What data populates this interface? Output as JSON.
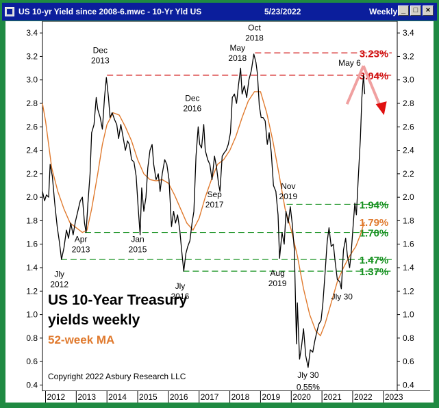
{
  "window": {
    "title": "US 10-yr Yield since 2008-6.mwc - 10-Yr Yld US",
    "date": "5/23/2022",
    "period": "Weekly",
    "minimize_glyph": "_",
    "maximize_glyph": "□",
    "close_glyph": "×"
  },
  "colors": {
    "titlebar": "#0b1e9c",
    "frame": "#1f8a42",
    "price_line": "#000000",
    "ma_line": "#e07a2e",
    "resistance": "#d01010",
    "support": "#14901e",
    "ma_label": "#e07a2e"
  },
  "chart_data": {
    "type": "line",
    "title": "US 10-Year Treasury yields weekly",
    "title_line1": "US 10-Year Treasury",
    "title_line2": "yields weekly",
    "subtitle": "52-week MA",
    "copyright": "Copyright 2022 Asbury Research LLC",
    "x_ticks": [
      "2012",
      "2013",
      "2014",
      "2015",
      "2016",
      "2017",
      "2018",
      "2019",
      "2020",
      "2021",
      "2022",
      "2023"
    ],
    "y_ticks": [
      "0.4",
      "0.6",
      "0.8",
      "1.0",
      "1.2",
      "1.4",
      "1.6",
      "1.8",
      "2.0",
      "2.2",
      "2.4",
      "2.6",
      "2.8",
      "3.0",
      "3.2",
      "3.4"
    ],
    "ylim": [
      0.35,
      3.5
    ],
    "xlim": [
      2011.9,
      2023.45
    ],
    "grid": false,
    "series": [
      {
        "name": "10-Yr Yld US",
        "style": "black",
        "points": [
          [
            2011.9,
            2.05
          ],
          [
            2011.97,
            1.97
          ],
          [
            2012.03,
            2.02
          ],
          [
            2012.1,
            2.0
          ],
          [
            2012.15,
            2.28
          ],
          [
            2012.22,
            2.18
          ],
          [
            2012.3,
            1.95
          ],
          [
            2012.38,
            1.75
          ],
          [
            2012.45,
            1.62
          ],
          [
            2012.52,
            1.47
          ],
          [
            2012.6,
            1.57
          ],
          [
            2012.68,
            1.72
          ],
          [
            2012.75,
            1.65
          ],
          [
            2012.82,
            1.78
          ],
          [
            2012.9,
            1.68
          ],
          [
            2012.97,
            1.79
          ],
          [
            2013.05,
            1.88
          ],
          [
            2013.13,
            1.97
          ],
          [
            2013.2,
            2.0
          ],
          [
            2013.27,
            1.78
          ],
          [
            2013.32,
            1.7
          ],
          [
            2013.38,
            1.95
          ],
          [
            2013.45,
            2.2
          ],
          [
            2013.5,
            2.55
          ],
          [
            2013.58,
            2.62
          ],
          [
            2013.65,
            2.85
          ],
          [
            2013.7,
            2.75
          ],
          [
            2013.78,
            2.68
          ],
          [
            2013.85,
            2.58
          ],
          [
            2013.92,
            2.85
          ],
          [
            2013.98,
            3.02
          ],
          [
            2014.05,
            2.85
          ],
          [
            2014.1,
            2.68
          ],
          [
            2014.17,
            2.72
          ],
          [
            2014.25,
            2.66
          ],
          [
            2014.32,
            2.62
          ],
          [
            2014.38,
            2.5
          ],
          [
            2014.45,
            2.62
          ],
          [
            2014.52,
            2.52
          ],
          [
            2014.6,
            2.4
          ],
          [
            2014.67,
            2.48
          ],
          [
            2014.73,
            2.45
          ],
          [
            2014.8,
            2.32
          ],
          [
            2014.88,
            2.3
          ],
          [
            2014.95,
            2.18
          ],
          [
            2015.02,
            1.9
          ],
          [
            2015.08,
            1.68
          ],
          [
            2015.13,
            2.08
          ],
          [
            2015.2,
            1.88
          ],
          [
            2015.27,
            2.0
          ],
          [
            2015.33,
            2.25
          ],
          [
            2015.4,
            2.4
          ],
          [
            2015.47,
            2.45
          ],
          [
            2015.52,
            2.28
          ],
          [
            2015.6,
            2.15
          ],
          [
            2015.67,
            2.2
          ],
          [
            2015.73,
            2.05
          ],
          [
            2015.8,
            2.2
          ],
          [
            2015.88,
            2.32
          ],
          [
            2015.95,
            2.28
          ],
          [
            2016.02,
            2.15
          ],
          [
            2016.1,
            1.75
          ],
          [
            2016.17,
            1.88
          ],
          [
            2016.23,
            1.78
          ],
          [
            2016.3,
            1.85
          ],
          [
            2016.37,
            1.72
          ],
          [
            2016.43,
            1.55
          ],
          [
            2016.5,
            1.37
          ],
          [
            2016.57,
            1.52
          ],
          [
            2016.63,
            1.58
          ],
          [
            2016.7,
            1.63
          ],
          [
            2016.77,
            1.78
          ],
          [
            2016.83,
            1.88
          ],
          [
            2016.9,
            2.35
          ],
          [
            2016.97,
            2.6
          ],
          [
            2017.02,
            2.45
          ],
          [
            2017.08,
            2.42
          ],
          [
            2017.15,
            2.62
          ],
          [
            2017.2,
            2.4
          ],
          [
            2017.28,
            2.32
          ],
          [
            2017.35,
            2.28
          ],
          [
            2017.42,
            2.15
          ],
          [
            2017.5,
            2.35
          ],
          [
            2017.57,
            2.25
          ],
          [
            2017.63,
            2.12
          ],
          [
            2017.68,
            2.05
          ],
          [
            2017.75,
            2.35
          ],
          [
            2017.82,
            2.38
          ],
          [
            2017.88,
            2.4
          ],
          [
            2017.95,
            2.45
          ],
          [
            2018.02,
            2.55
          ],
          [
            2018.08,
            2.85
          ],
          [
            2018.15,
            2.88
          ],
          [
            2018.22,
            2.8
          ],
          [
            2018.28,
            2.95
          ],
          [
            2018.35,
            3.1
          ],
          [
            2018.4,
            2.88
          ],
          [
            2018.47,
            2.95
          ],
          [
            2018.55,
            2.85
          ],
          [
            2018.62,
            3.0
          ],
          [
            2018.7,
            3.08
          ],
          [
            2018.78,
            3.22
          ],
          [
            2018.85,
            3.15
          ],
          [
            2018.9,
            3.05
          ],
          [
            2018.96,
            2.78
          ],
          [
            2019.02,
            2.68
          ],
          [
            2019.08,
            2.68
          ],
          [
            2019.15,
            2.65
          ],
          [
            2019.22,
            2.45
          ],
          [
            2019.28,
            2.55
          ],
          [
            2019.35,
            2.38
          ],
          [
            2019.42,
            2.1
          ],
          [
            2019.5,
            2.05
          ],
          [
            2019.57,
            1.85
          ],
          [
            2019.62,
            1.48
          ],
          [
            2019.7,
            1.7
          ],
          [
            2019.77,
            1.6
          ],
          [
            2019.83,
            1.88
          ],
          [
            2019.9,
            1.78
          ],
          [
            2019.97,
            1.92
          ],
          [
            2020.03,
            1.78
          ],
          [
            2020.1,
            1.55
          ],
          [
            2020.17,
            0.75
          ],
          [
            2020.2,
            1.1
          ],
          [
            2020.27,
            0.62
          ],
          [
            2020.33,
            0.72
          ],
          [
            2020.4,
            0.88
          ],
          [
            2020.47,
            0.65
          ],
          [
            2020.55,
            0.55
          ],
          [
            2020.62,
            0.7
          ],
          [
            2020.7,
            0.68
          ],
          [
            2020.77,
            0.78
          ],
          [
            2020.83,
            0.85
          ],
          [
            2020.9,
            0.92
          ],
          [
            2020.97,
            0.95
          ],
          [
            2021.03,
            1.1
          ],
          [
            2021.1,
            1.35
          ],
          [
            2021.17,
            1.62
          ],
          [
            2021.23,
            1.74
          ],
          [
            2021.3,
            1.58
          ],
          [
            2021.37,
            1.6
          ],
          [
            2021.43,
            1.45
          ],
          [
            2021.5,
            1.3
          ],
          [
            2021.58,
            1.28
          ],
          [
            2021.63,
            1.22
          ],
          [
            2021.7,
            1.55
          ],
          [
            2021.77,
            1.65
          ],
          [
            2021.83,
            1.5
          ],
          [
            2021.9,
            1.4
          ],
          [
            2021.95,
            1.52
          ],
          [
            2022.02,
            1.78
          ],
          [
            2022.07,
            1.95
          ],
          [
            2022.12,
            1.85
          ],
          [
            2022.18,
            2.15
          ],
          [
            2022.25,
            2.5
          ],
          [
            2022.3,
            2.85
          ],
          [
            2022.35,
            3.04
          ],
          [
            2022.39,
            2.88
          ]
        ]
      },
      {
        "name": "52-week MA",
        "style": "orange",
        "points": [
          [
            2011.9,
            2.8
          ],
          [
            2012.0,
            2.65
          ],
          [
            2012.2,
            2.25
          ],
          [
            2012.4,
            2.05
          ],
          [
            2012.6,
            1.9
          ],
          [
            2012.8,
            1.78
          ],
          [
            2013.0,
            1.74
          ],
          [
            2013.2,
            1.7
          ],
          [
            2013.35,
            1.72
          ],
          [
            2013.5,
            1.9
          ],
          [
            2013.7,
            2.2
          ],
          [
            2013.85,
            2.45
          ],
          [
            2014.0,
            2.62
          ],
          [
            2014.2,
            2.72
          ],
          [
            2014.4,
            2.7
          ],
          [
            2014.6,
            2.6
          ],
          [
            2014.8,
            2.48
          ],
          [
            2015.0,
            2.32
          ],
          [
            2015.2,
            2.2
          ],
          [
            2015.4,
            2.15
          ],
          [
            2015.6,
            2.14
          ],
          [
            2015.8,
            2.15
          ],
          [
            2016.0,
            2.12
          ],
          [
            2016.2,
            2.02
          ],
          [
            2016.4,
            1.9
          ],
          [
            2016.6,
            1.78
          ],
          [
            2016.8,
            1.72
          ],
          [
            2017.0,
            1.82
          ],
          [
            2017.2,
            2.0
          ],
          [
            2017.4,
            2.15
          ],
          [
            2017.6,
            2.28
          ],
          [
            2017.8,
            2.32
          ],
          [
            2018.0,
            2.4
          ],
          [
            2018.2,
            2.52
          ],
          [
            2018.4,
            2.68
          ],
          [
            2018.6,
            2.82
          ],
          [
            2018.8,
            2.9
          ],
          [
            2019.0,
            2.9
          ],
          [
            2019.2,
            2.72
          ],
          [
            2019.4,
            2.48
          ],
          [
            2019.6,
            2.2
          ],
          [
            2019.8,
            1.9
          ],
          [
            2020.0,
            1.72
          ],
          [
            2020.2,
            1.5
          ],
          [
            2020.4,
            1.22
          ],
          [
            2020.6,
            1.0
          ],
          [
            2020.8,
            0.86
          ],
          [
            2020.95,
            0.82
          ],
          [
            2021.1,
            0.92
          ],
          [
            2021.3,
            1.1
          ],
          [
            2021.5,
            1.28
          ],
          [
            2021.7,
            1.4
          ],
          [
            2021.9,
            1.5
          ],
          [
            2022.1,
            1.58
          ],
          [
            2022.25,
            1.68
          ],
          [
            2022.38,
            1.79
          ]
        ]
      }
    ],
    "levels": [
      {
        "value": 3.23,
        "label": "3.23%",
        "kind": "resistance",
        "from": 2018.82
      },
      {
        "value": 3.04,
        "label": "3.04%",
        "kind": "resistance",
        "from": 2014.0
      },
      {
        "value": 1.94,
        "label": "1.94%",
        "kind": "support",
        "from": 2019.85
      },
      {
        "value": 1.79,
        "label": "1.79%",
        "kind": "ma"
      },
      {
        "value": 1.7,
        "label": "1.70%",
        "kind": "support",
        "from": 2013.28
      },
      {
        "value": 1.47,
        "label": "1.47%",
        "kind": "support",
        "from": 2012.5
      },
      {
        "value": 1.37,
        "label": "1.37%",
        "kind": "support",
        "from": 2016.48
      }
    ],
    "annotations": [
      {
        "text": "Jly\n2012",
        "x": 2012.45,
        "y": 1.32,
        "color": "#000000"
      },
      {
        "text": "Apr\n2013",
        "x": 2013.15,
        "y": 1.62,
        "color": "#000000"
      },
      {
        "text": "Dec\n2013",
        "x": 2013.78,
        "y": 3.23,
        "color": "#000000"
      },
      {
        "text": "Jan\n2015",
        "x": 2015.0,
        "y": 1.62,
        "color": "#000000"
      },
      {
        "text": "Dec\n2016",
        "x": 2016.78,
        "y": 2.82,
        "color": "#000000"
      },
      {
        "text": "Jly\n2016",
        "x": 2016.38,
        "y": 1.22,
        "color": "#000000"
      },
      {
        "text": "Sep\n2017",
        "x": 2017.5,
        "y": 2.0,
        "color": "#000000"
      },
      {
        "text": "May\n2018",
        "x": 2018.25,
        "y": 3.25,
        "color": "#000000"
      },
      {
        "text": "Oct\n2018",
        "x": 2018.8,
        "y": 3.42,
        "color": "#000000"
      },
      {
        "text": "Nov\n2019",
        "x": 2019.9,
        "y": 2.07,
        "color": "#000000"
      },
      {
        "text": "Aug\n2019",
        "x": 2019.55,
        "y": 1.33,
        "color": "#000000"
      },
      {
        "text": "Jly 30",
        "x": 2020.55,
        "y": 0.46,
        "color": "#000000"
      },
      {
        "text": "0.55%",
        "x": 2020.55,
        "y": 0.36,
        "color": "#000000"
      },
      {
        "text": "Jly 30",
        "x": 2021.65,
        "y": 1.13,
        "color": "#000000"
      },
      {
        "text": "May 6",
        "x": 2021.9,
        "y": 3.12,
        "color": "#000000"
      }
    ]
  }
}
